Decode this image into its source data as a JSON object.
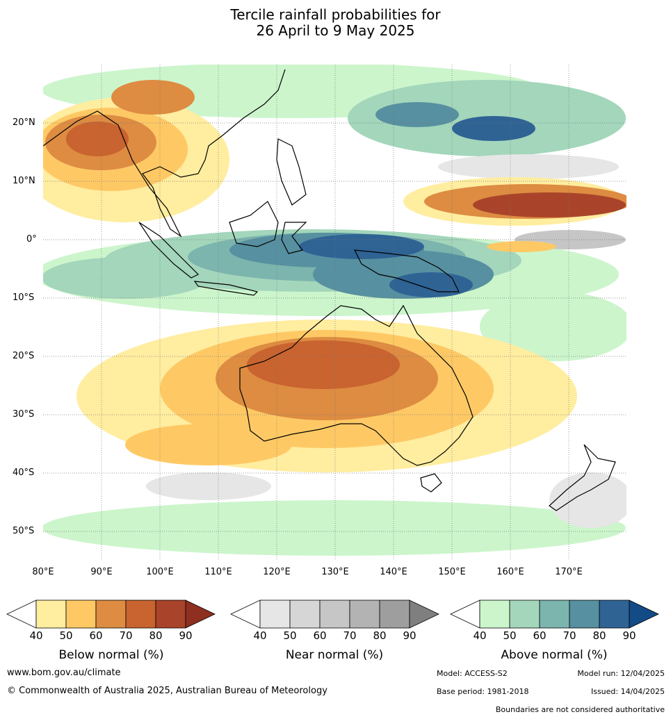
{
  "title_line1": "Tercile rainfall probabilities for",
  "title_line2": "26 April to 9 May 2025",
  "lat_labels": [
    "20°N",
    "10°N",
    "0°",
    "10°S",
    "20°S",
    "30°S",
    "40°S",
    "50°S"
  ],
  "lon_labels": [
    "80°E",
    "90°E",
    "100°E",
    "110°E",
    "120°E",
    "130°E",
    "140°E",
    "150°E",
    "160°E",
    "170°E"
  ],
  "colorbars": {
    "below": {
      "title": "Below normal (%)",
      "ticks": [
        "40",
        "50",
        "60",
        "70",
        "80",
        "90"
      ],
      "colors": [
        "#ffffff",
        "#ffeda0",
        "#fec965",
        "#dd8c42",
        "#c9632f",
        "#a9442a",
        "#8e2f1f"
      ]
    },
    "near": {
      "title": "Near normal (%)",
      "ticks": [
        "40",
        "50",
        "60",
        "70",
        "80",
        "90"
      ],
      "colors": [
        "#ffffff",
        "#e6e6e6",
        "#d6d6d6",
        "#c6c6c6",
        "#b3b3b3",
        "#9e9e9e",
        "#7f7f7f"
      ]
    },
    "above": {
      "title": "Above normal (%)",
      "ticks": [
        "40",
        "50",
        "60",
        "70",
        "80",
        "90"
      ],
      "colors": [
        "#ffffff",
        "#ccf5cc",
        "#a3d6bb",
        "#7cb4ae",
        "#5790a0",
        "#2f6394",
        "#134b86"
      ]
    }
  },
  "footer": {
    "website": "www.bom.gov.au/climate",
    "copyright": "© Commonwealth of Australia 2025, Australian Bureau of Meteorology",
    "model": "Model: ACCESS-S2",
    "model_run": "Model run: 12/04/2025",
    "base_period": "Base period: 1981-2018",
    "issued": "Issued: 14/04/2025",
    "disclaimer": "Boundaries are not considered authoritative"
  }
}
